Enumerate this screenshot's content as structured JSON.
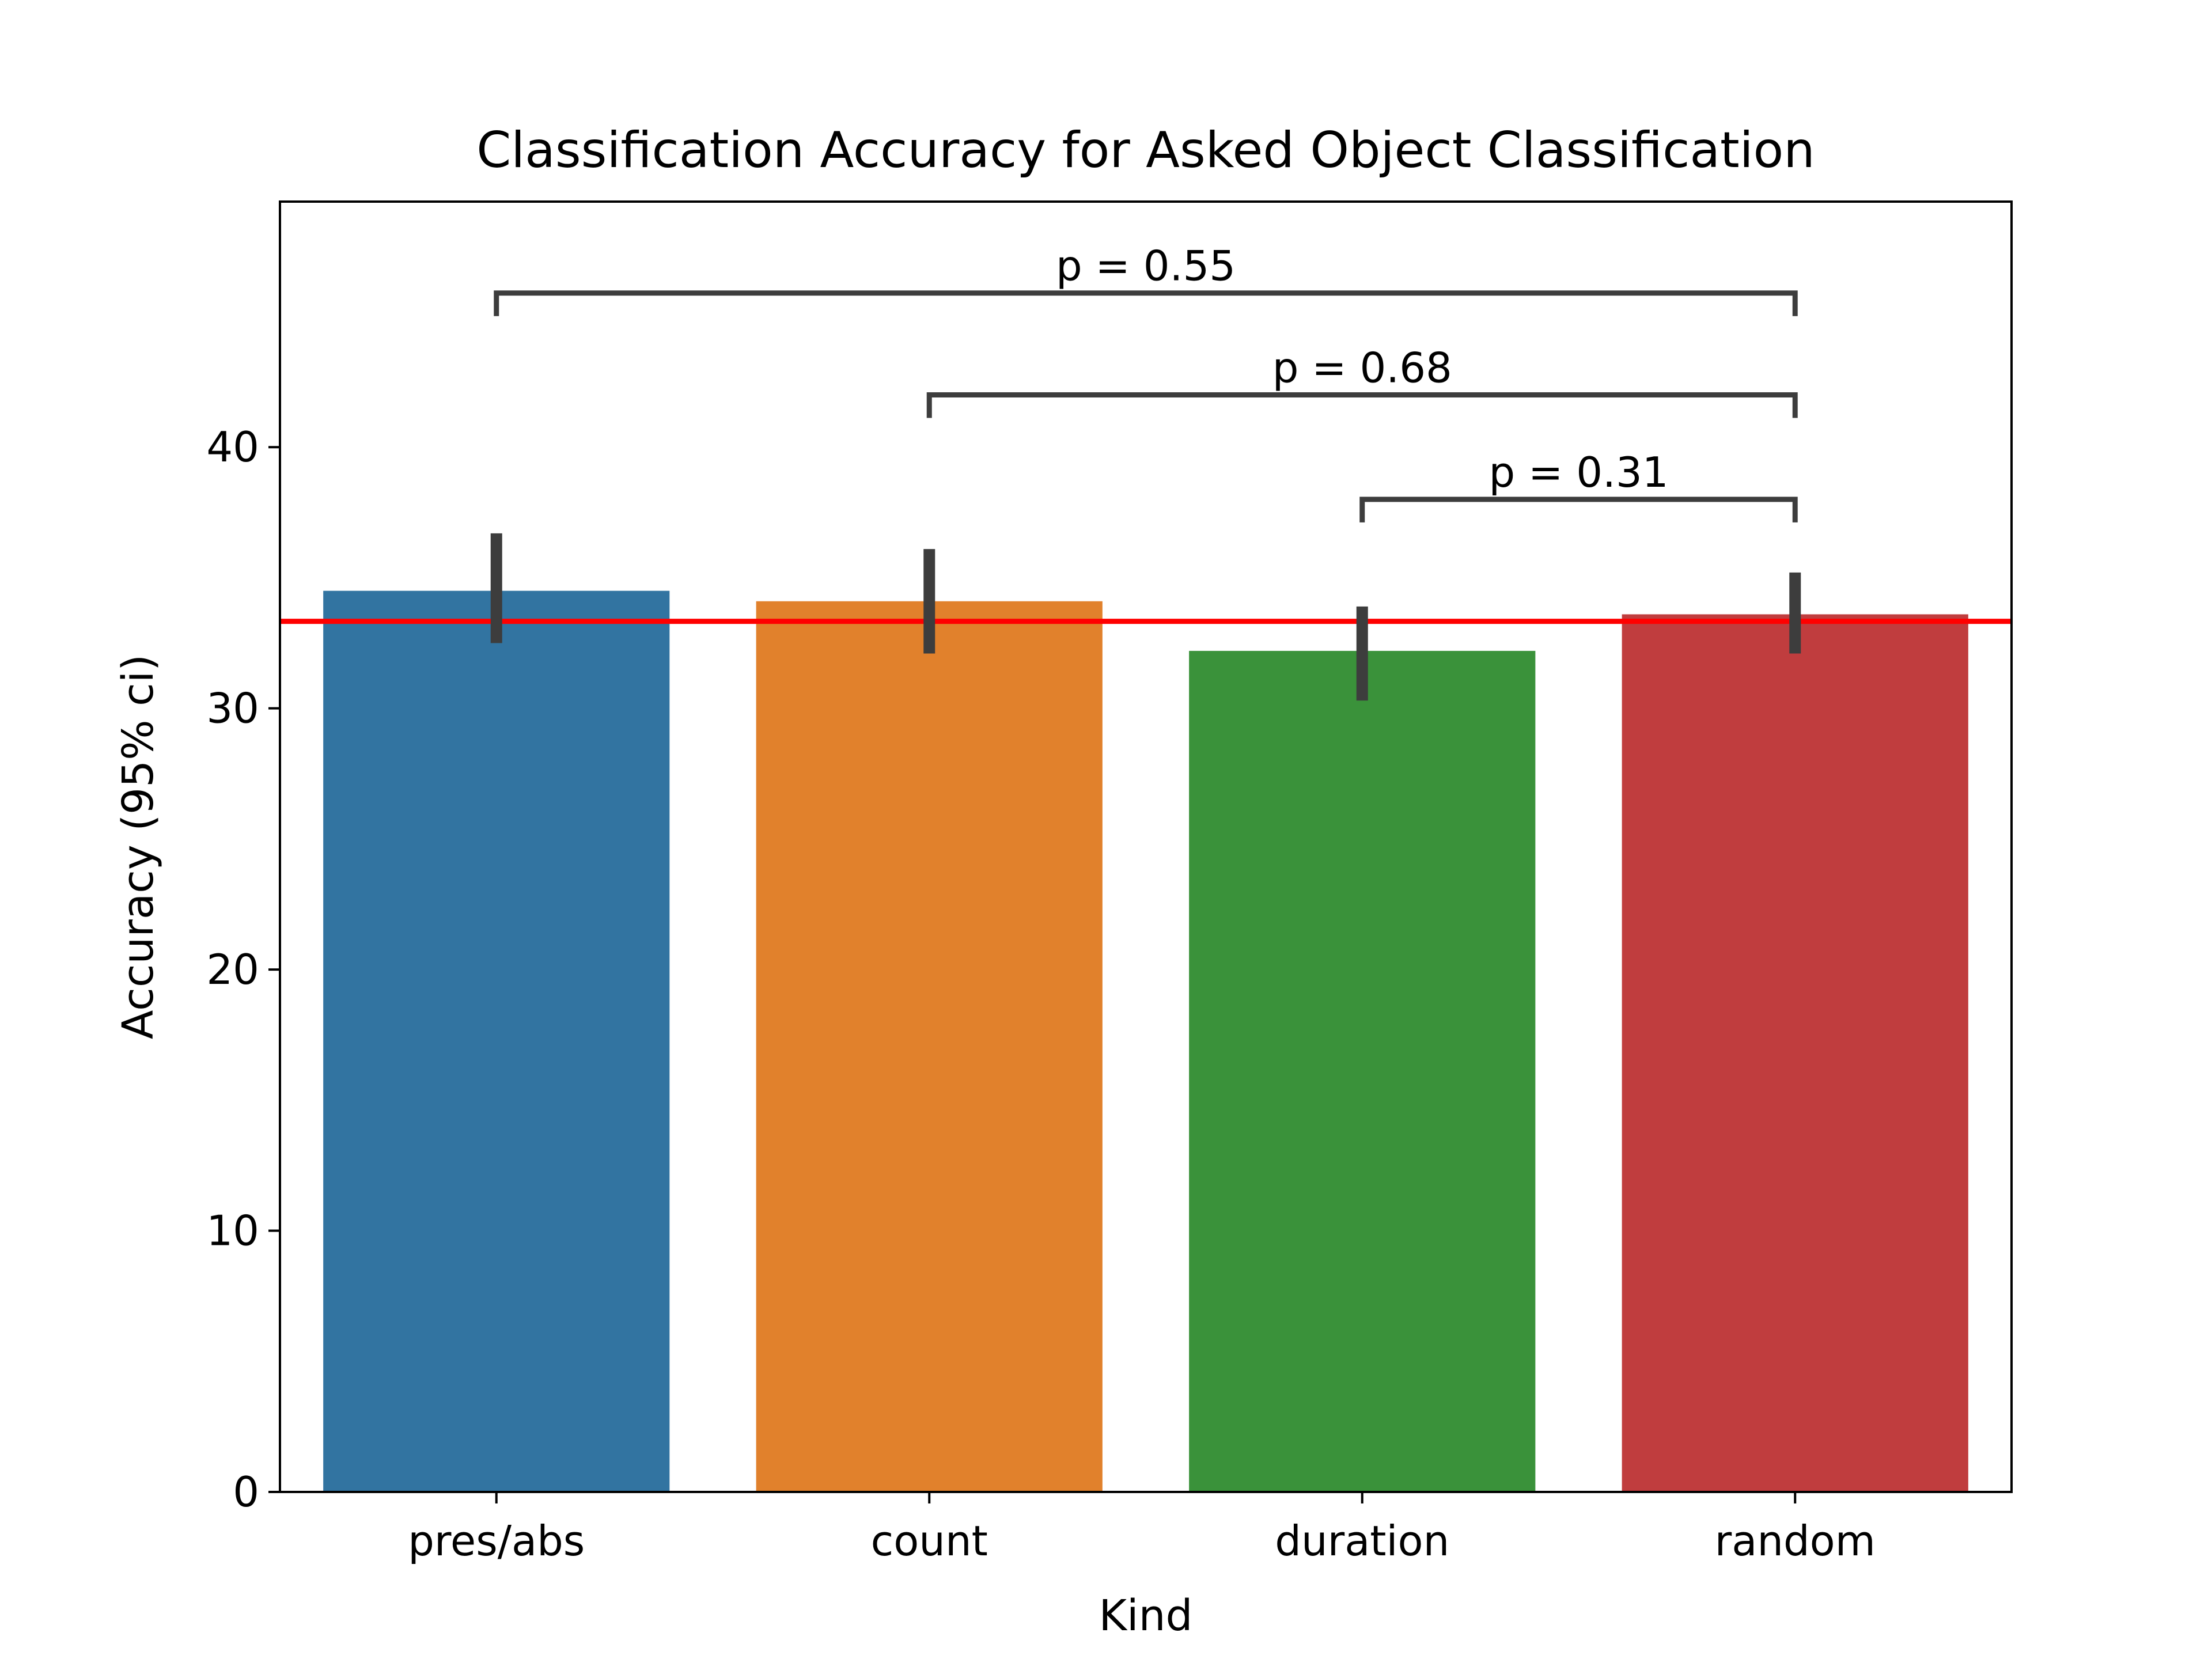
{
  "chart_data": {
    "type": "bar",
    "title": "Classification Accuracy for Asked Object Classification",
    "xlabel": "Kind",
    "ylabel": "Accuracy (95% ci)",
    "ylim": [
      0,
      49.4
    ],
    "yticks": [
      0,
      10,
      20,
      30,
      40
    ],
    "categories": [
      "pres/abs",
      "count",
      "duration",
      "random"
    ],
    "values": [
      34.5,
      34.1,
      32.2,
      33.6
    ],
    "error_bars": [
      [
        32.5,
        36.7
      ],
      [
        32.1,
        36.1
      ],
      [
        30.3,
        33.9
      ],
      [
        32.1,
        35.2
      ]
    ],
    "colors": [
      "#3274a1",
      "#e1812c",
      "#3a923a",
      "#c03d3e"
    ],
    "reference_line": {
      "value": 33.33,
      "color": "#ff0000"
    },
    "significance": [
      {
        "from": 0,
        "to": 3,
        "label": "p = 0.55",
        "height": 45.9
      },
      {
        "from": 1,
        "to": 3,
        "label": "p = 0.68",
        "height": 42.0
      },
      {
        "from": 2,
        "to": 3,
        "label": "p = 0.31",
        "height": 38.0
      }
    ],
    "grid": false,
    "legend": "none"
  }
}
